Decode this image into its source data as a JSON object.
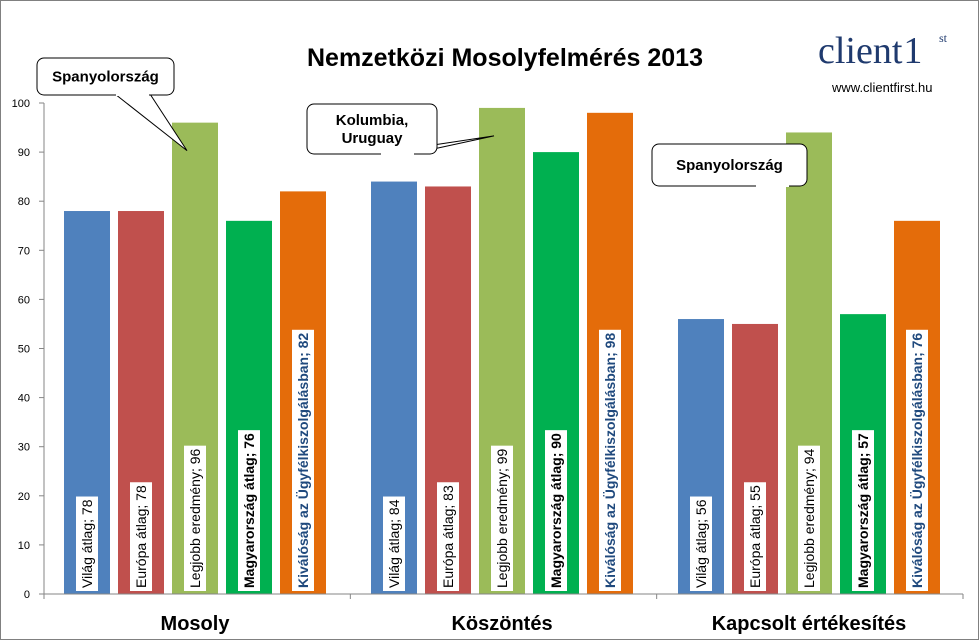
{
  "chart_data": {
    "type": "bar",
    "title": "Nemzetközi Mosolyfelmérés 2013",
    "categories": [
      "Mosoly",
      "Köszöntés",
      "Kapcsolt értékesítés"
    ],
    "ylim": [
      0,
      100
    ],
    "yticks": [
      "0",
      "10",
      "20",
      "30",
      "40",
      "50",
      "60",
      "70",
      "80",
      "90",
      "100"
    ],
    "grid": false,
    "legend": "none",
    "series": [
      {
        "key": "vilag",
        "color": "#4f81bd",
        "labels": [
          "Világ átlag; 78",
          "Világ átlag; 84",
          "Világ átlag; 56"
        ],
        "values": [
          78,
          84,
          56
        ],
        "bold": false,
        "label_color": "#000000"
      },
      {
        "key": "europa",
        "color": "#c0504d",
        "labels": [
          "Európa átlag; 78",
          "Európa átlag; 83",
          "Európa átlag; 55"
        ],
        "values": [
          78,
          83,
          55
        ],
        "bold": false,
        "label_color": "#000000"
      },
      {
        "key": "legjobb",
        "color": "#9bbb59",
        "labels": [
          "Legjobb eredmény; 96",
          "Legjobb eredmény; 99",
          "Legjobb eredmény; 94"
        ],
        "values": [
          96,
          99,
          94
        ],
        "bold": false,
        "label_color": "#000000"
      },
      {
        "key": "magyar",
        "color": "#00b050",
        "labels": [
          "Magyarország átlag; 76",
          "Magyarország átlag; 90",
          "Magyarország átlag; 57"
        ],
        "values": [
          76,
          90,
          57
        ],
        "bold": true,
        "label_color": "#000000"
      },
      {
        "key": "kivalosag",
        "color": "#e46c0a",
        "labels": [
          "Kiválóság az Ügyfélkiszolgálásban; 82",
          "Kiválóság az Ügyfélkiszolgálásban; 98",
          "Kiválóság az Ügyfélkiszolgálásban; 76"
        ],
        "values": [
          82,
          98,
          76
        ],
        "bold": true,
        "label_color": "#1f497d"
      }
    ],
    "annotations": [
      {
        "lines": [
          "Spanyolország"
        ],
        "category": 0,
        "series": 2
      },
      {
        "lines": [
          "Kolumbia,",
          "Uruguay"
        ],
        "category": 1,
        "series": 2
      },
      {
        "lines": [
          "Spanyolország"
        ],
        "category": 2,
        "series": 2
      }
    ]
  },
  "logo": {
    "brand": "client",
    "superscript": "1",
    "superscript_suffix": "st",
    "url": "www.clientfirst.hu"
  }
}
